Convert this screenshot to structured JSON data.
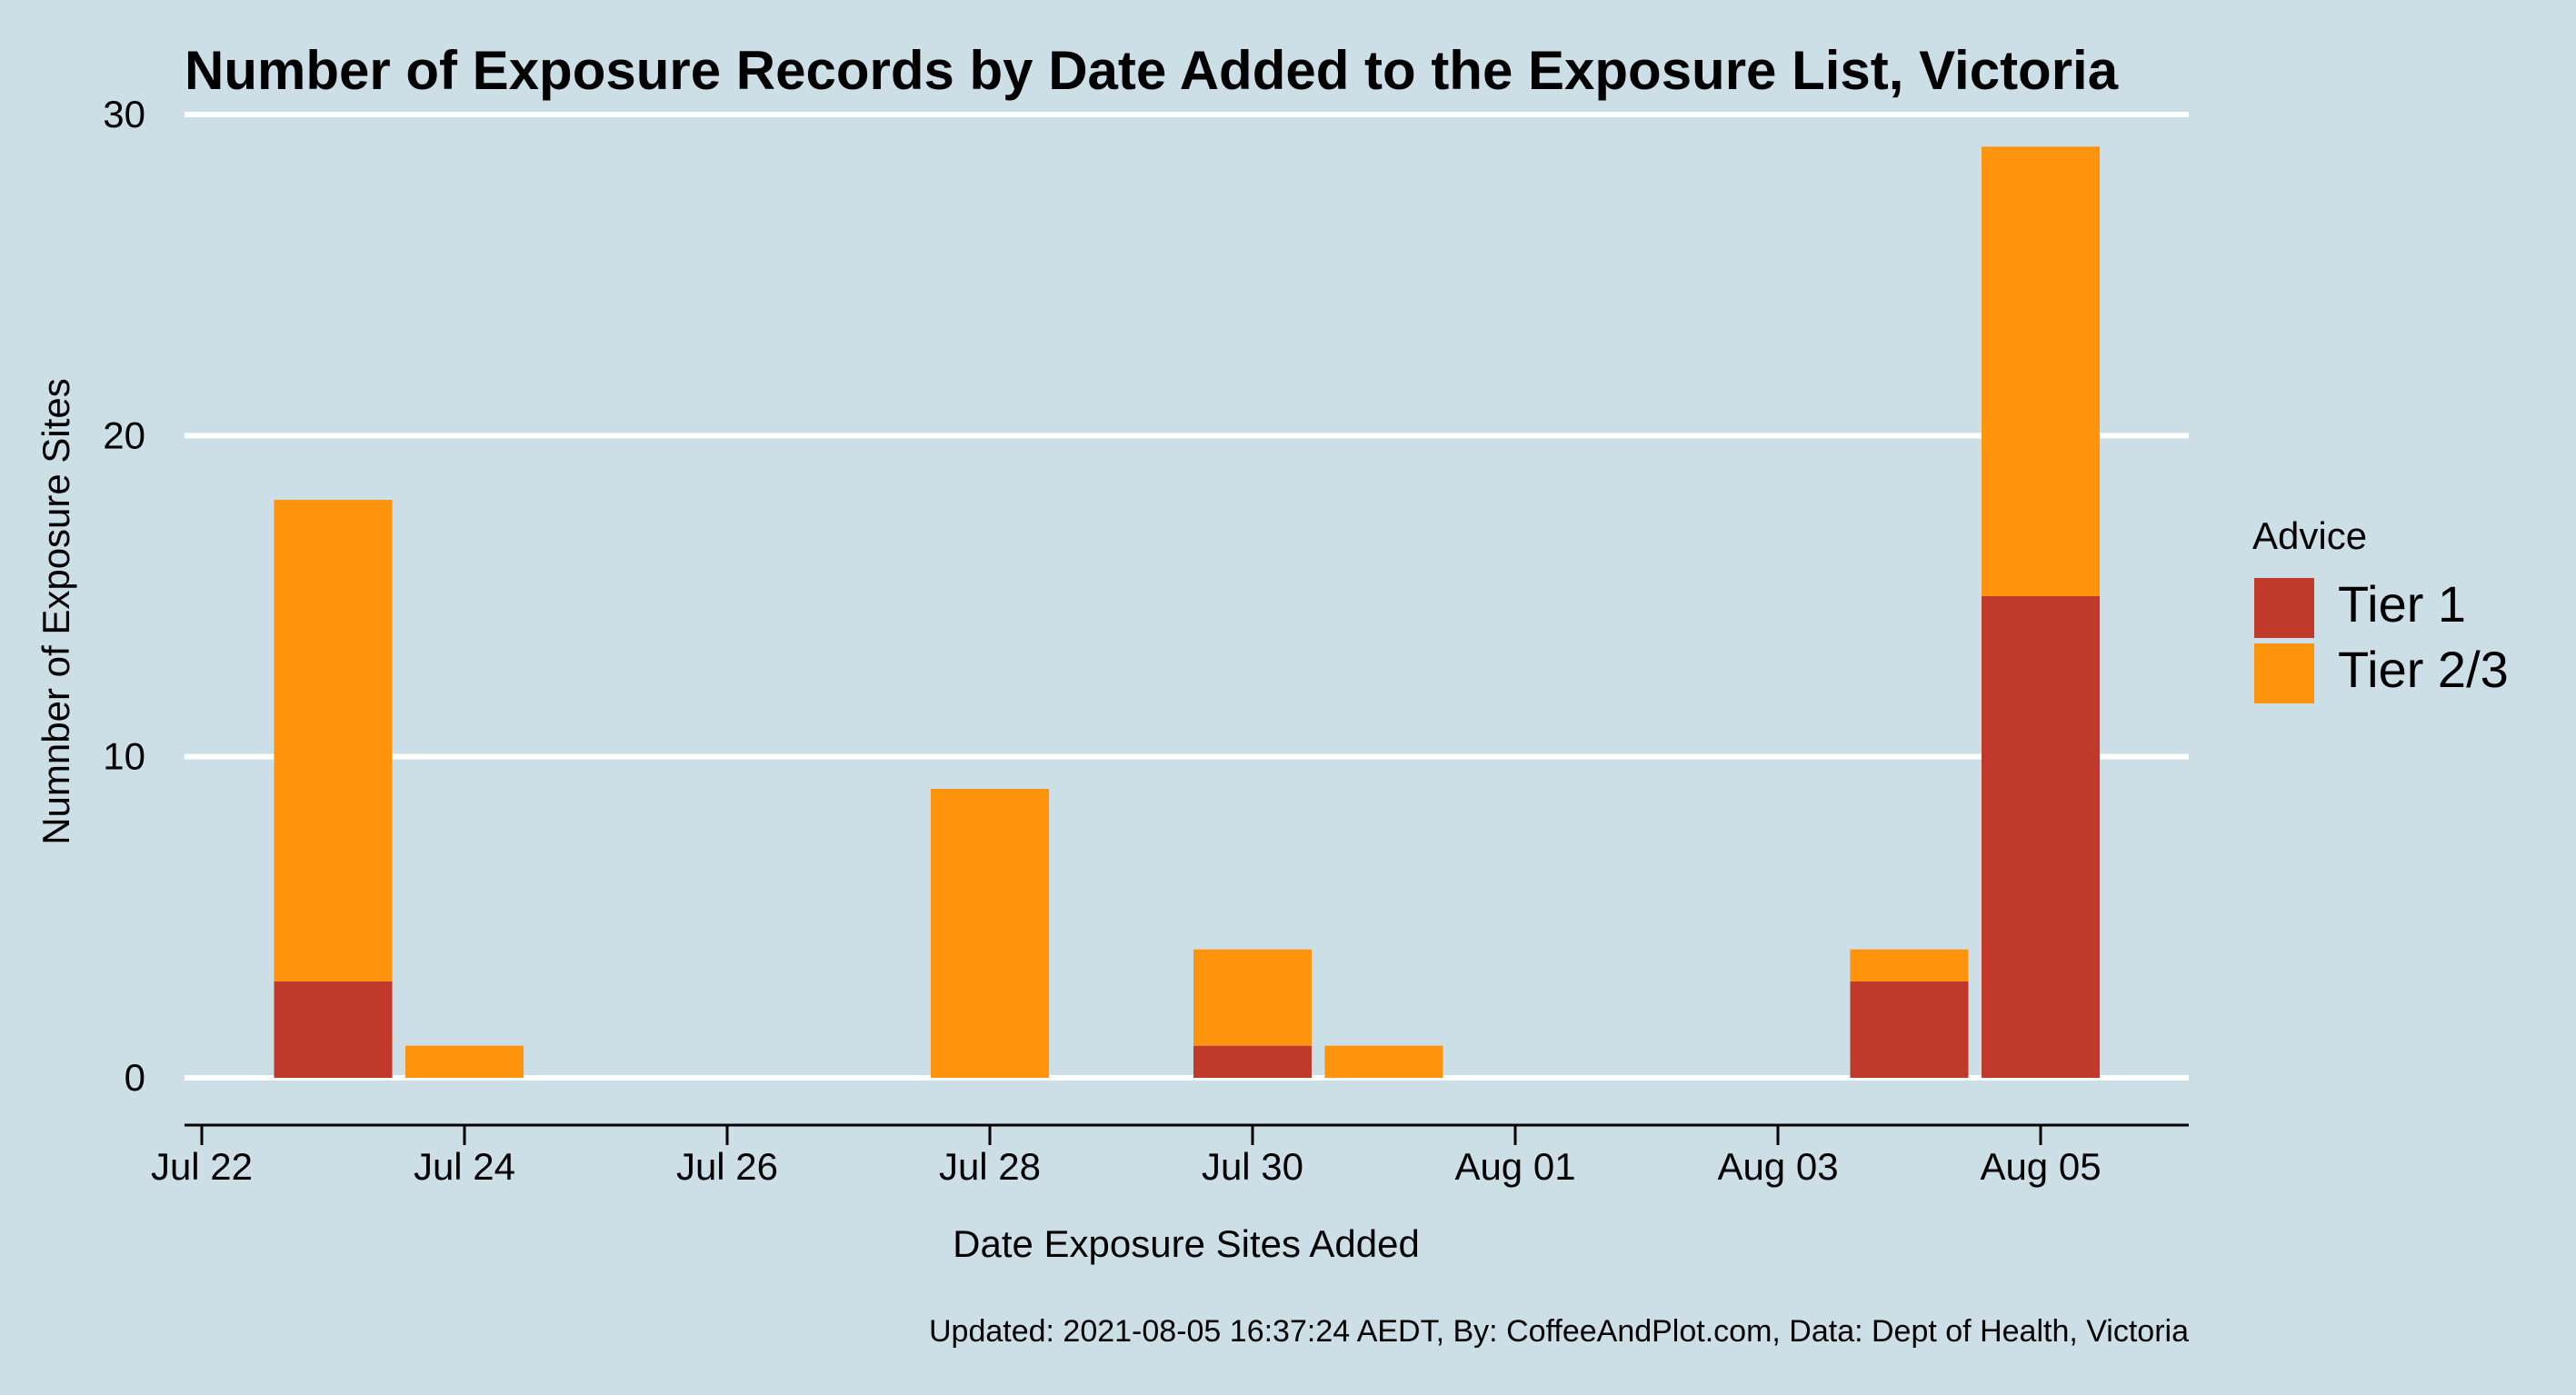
{
  "chart_data": {
    "type": "bar",
    "stacked": true,
    "title": "Number of Exposure Records by Date Added to the Exposure List, Victoria",
    "xlabel": "Date Exposure Sites Added",
    "ylabel": "Numnber of Exposure Sites",
    "caption": "Updated: 2021-08-05 16:37:24 AEDT, By: CoffeeAndPlot.com, Data: Dept of Health, Victoria",
    "x": [
      "2021-07-23",
      "2021-07-24",
      "2021-07-28",
      "2021-07-30",
      "2021-07-31",
      "2021-08-04",
      "2021-08-05"
    ],
    "series": [
      {
        "name": "Tier 1",
        "color": "#c0392b",
        "values": [
          3,
          0,
          0,
          1,
          0,
          3,
          15
        ]
      },
      {
        "name": "Tier 2/3",
        "color": "#fe940d",
        "values": [
          15,
          1,
          9,
          3,
          1,
          1,
          14
        ]
      }
    ],
    "xlim": [
      "2021-07-22",
      "2021-08-06"
    ],
    "ylim": [
      0,
      30
    ],
    "xticks": [
      {
        "date": "2021-07-22",
        "label": "Jul 22"
      },
      {
        "date": "2021-07-24",
        "label": "Jul 24"
      },
      {
        "date": "2021-07-26",
        "label": "Jul 26"
      },
      {
        "date": "2021-07-28",
        "label": "Jul 28"
      },
      {
        "date": "2021-07-30",
        "label": "Jul 30"
      },
      {
        "date": "2021-08-01",
        "label": "Aug 01"
      },
      {
        "date": "2021-08-03",
        "label": "Aug 03"
      },
      {
        "date": "2021-08-05",
        "label": "Aug 05"
      }
    ],
    "yticks": [
      0,
      10,
      20,
      30
    ],
    "legend_title": "Advice",
    "legend_position": "right",
    "grid": "horizontal",
    "background_color": "#cddfe6"
  }
}
